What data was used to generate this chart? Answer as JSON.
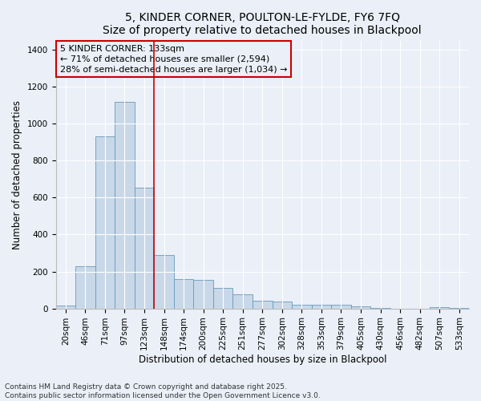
{
  "title": "5, KINDER CORNER, POULTON-LE-FYLDE, FY6 7FQ",
  "subtitle": "Size of property relative to detached houses in Blackpool",
  "xlabel": "Distribution of detached houses by size in Blackpool",
  "ylabel": "Number of detached properties",
  "categories": [
    "20sqm",
    "46sqm",
    "71sqm",
    "97sqm",
    "123sqm",
    "148sqm",
    "174sqm",
    "200sqm",
    "225sqm",
    "251sqm",
    "277sqm",
    "302sqm",
    "328sqm",
    "353sqm",
    "379sqm",
    "405sqm",
    "430sqm",
    "456sqm",
    "482sqm",
    "507sqm",
    "533sqm"
  ],
  "values": [
    15,
    230,
    930,
    1120,
    655,
    290,
    160,
    155,
    110,
    75,
    42,
    38,
    22,
    18,
    20,
    13,
    4,
    0,
    0,
    8,
    2
  ],
  "bar_color": "#c8d8e8",
  "bar_edge_color": "#6699bb",
  "vline_color": "#cc0000",
  "annotation_text": "5 KINDER CORNER: 133sqm\n← 71% of detached houses are smaller (2,594)\n28% of semi-detached houses are larger (1,034) →",
  "annotation_box_color": "#cc0000",
  "ylim": [
    0,
    1450
  ],
  "yticks": [
    0,
    200,
    400,
    600,
    800,
    1000,
    1200,
    1400
  ],
  "bg_color": "#eaeff8",
  "footer": "Contains HM Land Registry data © Crown copyright and database right 2025.\nContains public sector information licensed under the Open Government Licence v3.0.",
  "title_fontsize": 10,
  "axis_label_fontsize": 8.5,
  "tick_fontsize": 7.5,
  "annotation_fontsize": 8,
  "footer_fontsize": 6.5
}
